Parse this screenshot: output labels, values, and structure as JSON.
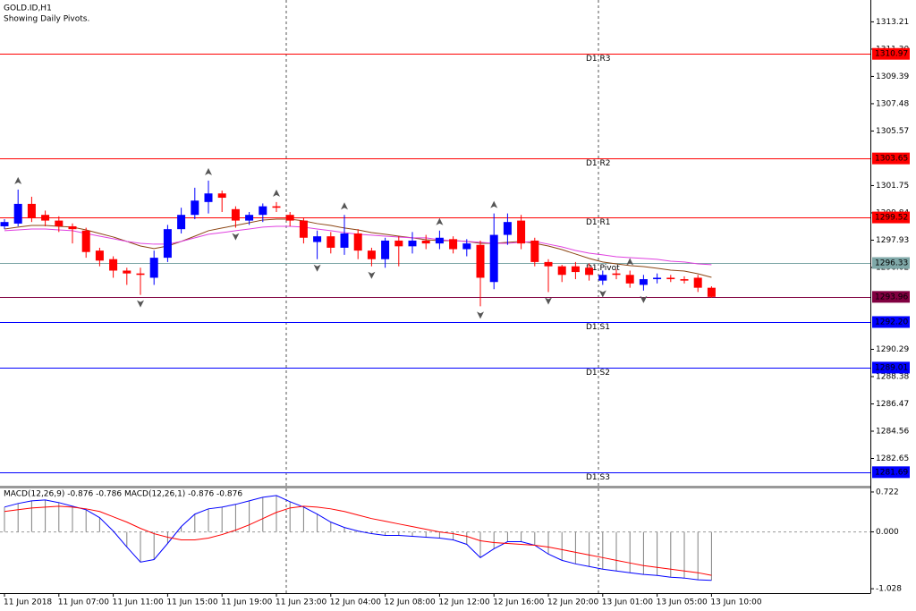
{
  "chart_data": [
    {
      "type": "candlestick",
      "title": "GOLD.ID,H1",
      "subtitle": "Showing Daily Pivots.",
      "categories": [
        "11 Jun 2018",
        null,
        null,
        null,
        "11 Jun 07:00",
        null,
        null,
        null,
        "11 Jun 11:00",
        null,
        null,
        null,
        "11 Jun 15:00",
        null,
        null,
        null,
        "11 Jun 19:00",
        null,
        null,
        null,
        "11 Jun 23:00",
        null,
        null,
        null,
        "12 Jun 04:00",
        null,
        null,
        null,
        "12 Jun 08:00",
        null,
        null,
        null,
        "12 Jun 12:00",
        null,
        null,
        null,
        "12 Jun 16:00",
        null,
        null,
        null,
        "12 Jun 20:00",
        null,
        null,
        null,
        "13 Jun 01:00",
        null,
        null,
        null,
        "13 Jun 05:00",
        null,
        null,
        null,
        "13 Jun 10:00"
      ],
      "open": [
        1298.9,
        1299.09,
        1300.47,
        1299.7,
        1299.3,
        1298.9,
        1298.6,
        1297.2,
        1296.6,
        1295.8,
        1295.6,
        1295.3,
        1296.7,
        1298.7,
        1299.7,
        1300.6,
        1301.2,
        1300.1,
        1299.3,
        1299.7,
        1300.3,
        1299.7,
        1299.3,
        1297.8,
        1298.2,
        1297.4,
        1298.4,
        1297.2,
        1296.6,
        1297.9,
        1297.5,
        1297.9,
        1297.7,
        1298.0,
        1297.3,
        1297.6,
        1295.0,
        1298.3,
        1299.3,
        1297.9,
        1296.4,
        1296.1,
        1296.1,
        1296.0,
        1295.1,
        1295.6,
        1295.5,
        1294.8,
        1295.2,
        1295.3,
        1295.2,
        1295.3,
        1294.6
      ],
      "high": [
        1299.4,
        1301.47,
        1300.97,
        1300.0,
        1299.6,
        1299.1,
        1298.8,
        1297.4,
        1296.8,
        1296.0,
        1296.0,
        1297.2,
        1299.0,
        1300.2,
        1301.6,
        1302.1,
        1301.4,
        1300.3,
        1299.9,
        1300.5,
        1300.6,
        1299.9,
        1299.5,
        1298.6,
        1298.5,
        1299.7,
        1298.7,
        1297.4,
        1298.1,
        1298.2,
        1298.5,
        1298.3,
        1298.6,
        1298.2,
        1298.0,
        1297.9,
        1299.8,
        1299.8,
        1299.7,
        1298.1,
        1296.6,
        1296.2,
        1296.4,
        1296.3,
        1295.8,
        1295.9,
        1295.8,
        1295.5,
        1295.6,
        1295.5,
        1295.4,
        1295.5,
        1294.7
      ],
      "low": [
        1298.7,
        1298.9,
        1299.2,
        1298.9,
        1298.5,
        1297.7,
        1296.7,
        1296.1,
        1295.3,
        1294.8,
        1294.1,
        1294.8,
        1296.4,
        1298.4,
        1299.4,
        1299.8,
        1299.9,
        1298.8,
        1299.0,
        1299.2,
        1299.9,
        1298.9,
        1297.7,
        1296.6,
        1297.0,
        1296.9,
        1296.6,
        1296.1,
        1296.0,
        1296.1,
        1297.0,
        1297.3,
        1297.3,
        1297.0,
        1296.8,
        1293.3,
        1294.5,
        1297.6,
        1297.3,
        1296.1,
        1294.3,
        1295.0,
        1295.2,
        1295.1,
        1294.8,
        1295.2,
        1294.6,
        1294.4,
        1294.9,
        1295.0,
        1294.9,
        1294.3,
        1293.9
      ],
      "close": [
        1299.2,
        1300.47,
        1299.46,
        1299.3,
        1298.9,
        1298.7,
        1297.1,
        1296.5,
        1295.8,
        1295.6,
        1295.5,
        1296.7,
        1298.7,
        1299.7,
        1300.7,
        1301.2,
        1300.9,
        1299.3,
        1299.7,
        1300.3,
        1300.2,
        1299.3,
        1298.1,
        1298.2,
        1297.4,
        1298.4,
        1297.2,
        1296.6,
        1297.9,
        1297.5,
        1297.9,
        1297.7,
        1298.1,
        1297.3,
        1297.7,
        1295.3,
        1298.3,
        1299.2,
        1297.7,
        1296.4,
        1296.1,
        1295.5,
        1295.7,
        1295.5,
        1295.5,
        1295.5,
        1294.9,
        1295.2,
        1295.3,
        1295.2,
        1295.1,
        1294.6,
        1293.96
      ],
      "up_color": "#0000ff",
      "down_color": "#ff0000",
      "lines": [
        {
          "color": "#8b4513",
          "values": [
            1298.71,
            1298.84,
            1298.96,
            1298.96,
            1298.9,
            1298.84,
            1298.65,
            1298.4,
            1298.15,
            1297.84,
            1297.52,
            1297.34,
            1297.52,
            1297.84,
            1298.21,
            1298.59,
            1298.78,
            1298.96,
            1299.15,
            1299.34,
            1299.4,
            1299.4,
            1299.28,
            1299.09,
            1298.96,
            1298.78,
            1298.65,
            1298.46,
            1298.34,
            1298.21,
            1298.09,
            1297.96,
            1297.9,
            1297.9,
            1297.84,
            1297.71,
            1297.71,
            1297.78,
            1297.84,
            1297.71,
            1297.52,
            1297.27,
            1296.96,
            1296.65,
            1296.4,
            1296.27,
            1296.15,
            1296.08,
            1295.96,
            1295.83,
            1295.77,
            1295.58,
            1295.33
          ]
        },
        {
          "color": "#e040e0",
          "values": [
            1298.59,
            1298.65,
            1298.71,
            1298.71,
            1298.65,
            1298.59,
            1298.4,
            1298.21,
            1298.03,
            1297.84,
            1297.71,
            1297.65,
            1297.65,
            1297.84,
            1298.09,
            1298.34,
            1298.46,
            1298.59,
            1298.71,
            1298.84,
            1298.9,
            1298.9,
            1298.84,
            1298.71,
            1298.59,
            1298.46,
            1298.34,
            1298.28,
            1298.21,
            1298.15,
            1298.09,
            1298.09,
            1297.96,
            1297.9,
            1297.84,
            1297.78,
            1297.71,
            1297.71,
            1297.78,
            1297.84,
            1297.65,
            1297.46,
            1297.21,
            1297.02,
            1296.9,
            1296.77,
            1296.71,
            1296.65,
            1296.59,
            1296.46,
            1296.4,
            1296.27,
            1296.21
          ]
        }
      ],
      "fractals_up": [
        null,
        1301.47,
        null,
        null,
        null,
        null,
        null,
        null,
        null,
        null,
        null,
        null,
        null,
        null,
        null,
        1302.1,
        null,
        null,
        null,
        null,
        1300.6,
        null,
        null,
        null,
        null,
        1299.7,
        null,
        null,
        null,
        null,
        null,
        null,
        1298.6,
        null,
        null,
        null,
        1299.8,
        null,
        null,
        null,
        null,
        null,
        null,
        null,
        null,
        null,
        1295.8,
        null,
        null,
        null,
        null,
        null,
        null
      ],
      "fractals_down": [
        null,
        null,
        null,
        null,
        null,
        null,
        null,
        null,
        null,
        null,
        1294.1,
        null,
        null,
        null,
        null,
        null,
        null,
        1298.8,
        null,
        null,
        null,
        null,
        null,
        1296.6,
        null,
        null,
        null,
        1296.1,
        null,
        null,
        null,
        null,
        null,
        null,
        null,
        1293.3,
        null,
        null,
        null,
        null,
        1294.3,
        null,
        null,
        null,
        1294.8,
        null,
        null,
        1294.4,
        null,
        null,
        null,
        null,
        null
      ],
      "levels": [
        {
          "name": "D1 R3",
          "value": 1310.97,
          "color": "#ff0000"
        },
        {
          "name": "D1 R2",
          "value": 1303.65,
          "color": "#ff0000"
        },
        {
          "name": "D1 R1",
          "value": 1299.52,
          "color": "#ff0000"
        },
        {
          "name": "D1 Pivot",
          "value": 1296.33,
          "color": "#7fa8a8"
        },
        {
          "name": "D1 S1",
          "value": 1292.2,
          "value_label": "1292.20",
          "color": "#0000ff"
        },
        {
          "name": "D1 S2",
          "value": 1289.01,
          "color": "#0000ff"
        },
        {
          "name": "D1 S3",
          "value": 1281.69,
          "color": "#0000ff"
        }
      ],
      "last_price": {
        "value": 1293.96,
        "color": "#800040"
      },
      "ylim": [
        1280.74,
        1314.74
      ],
      "yticks": [
        1313.21,
        {
          "value": 1311.3,
          "label": "1311.30"
        },
        1309.39,
        1307.48,
        1305.57,
        1301.75,
        1299.84,
        1297.93,
        1296.02,
        1290.29,
        1288.38,
        1286.47,
        1284.56,
        1282.65
      ],
      "grid": false
    },
    {
      "type": "macd",
      "legend_text": "MACD(12,26,9) -0.876 -0.786 MACD(12,26,1) -0.876 -0.876",
      "series": [
        {
          "style": "histogram",
          "color": "#808080",
          "values": [
            0.449,
            0.514,
            0.562,
            0.578,
            0.53,
            0.465,
            0.401,
            0.257,
            0.016,
            -0.273,
            -0.546,
            -0.5,
            -0.209,
            0.096,
            0.321,
            0.417,
            0.449,
            0.498,
            0.562,
            0.626,
            0.658,
            0.546,
            0.449,
            0.321,
            0.177,
            0.08,
            0.016,
            -0.032,
            -0.064,
            -0.064,
            -0.08,
            -0.096,
            -0.112,
            -0.144,
            -0.225,
            -0.465,
            -0.305,
            -0.177,
            -0.177,
            -0.241,
            -0.401,
            -0.514,
            -0.578,
            -0.626,
            -0.674,
            -0.706,
            -0.738,
            -0.77,
            -0.787,
            -0.819,
            -0.835,
            -0.867,
            -0.876
          ]
        },
        {
          "style": "line",
          "color": "#ff0000",
          "values": [
            0.369,
            0.401,
            0.433,
            0.449,
            0.465,
            0.449,
            0.417,
            0.369,
            0.273,
            0.177,
            0.064,
            -0.032,
            -0.096,
            -0.144,
            -0.144,
            -0.112,
            -0.048,
            0.032,
            0.128,
            0.241,
            0.353,
            0.433,
            0.465,
            0.449,
            0.417,
            0.369,
            0.305,
            0.241,
            0.193,
            0.144,
            0.096,
            0.048,
            0,
            -0.032,
            -0.08,
            -0.161,
            -0.193,
            -0.209,
            -0.225,
            -0.241,
            -0.273,
            -0.321,
            -0.369,
            -0.417,
            -0.465,
            -0.514,
            -0.562,
            -0.61,
            -0.642,
            -0.674,
            -0.706,
            -0.738,
            -0.786
          ]
        }
      ],
      "histogram_line_color": "#0000ff",
      "ylim": [
        -1.107,
        0.786
      ],
      "yticks": [
        0.722,
        {
          "value": 0,
          "label": "0.000"
        },
        -1.028
      ]
    }
  ]
}
